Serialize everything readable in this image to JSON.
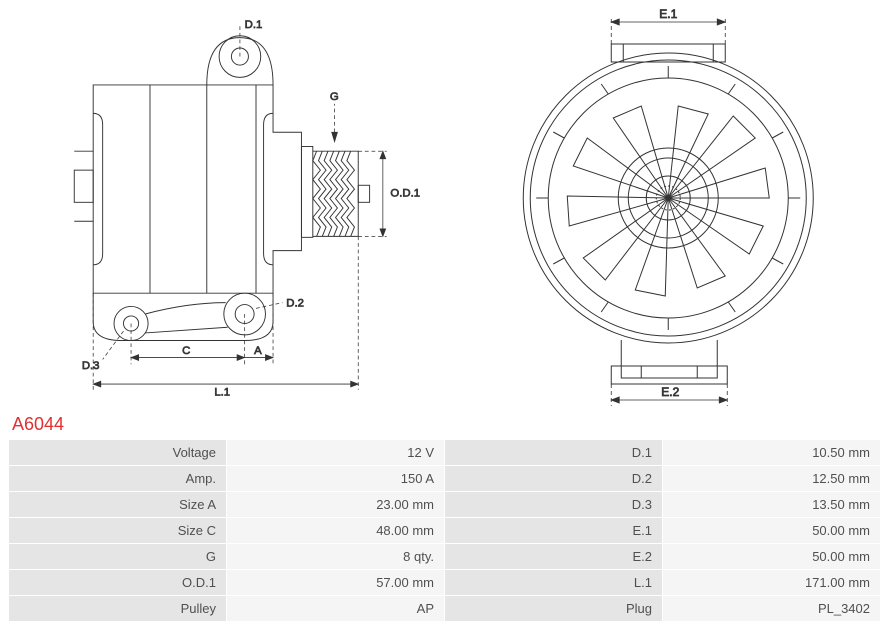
{
  "part_number": "A6044",
  "diagram": {
    "type": "engineering-drawing",
    "stroke_color": "#333333",
    "stroke_width": 1,
    "leader_color": "#333333",
    "leader_dash": "4,3",
    "label_color": "#444444",
    "label_fontsize": 12,
    "background": "#ffffff",
    "dim_labels_left": {
      "d1": "D.1",
      "g": "G",
      "od1": "O.D.1",
      "d2": "D.2",
      "d3": "D.3",
      "c": "C",
      "a": "A",
      "l1": "L.1"
    },
    "dim_labels_right": {
      "e1": "E.1",
      "e2": "E.2"
    }
  },
  "spec_table": {
    "row_bg_label": "#e5e5e5",
    "row_bg_value": "#f5f5f5",
    "border_color": "#ffffff",
    "text_color": "#505050",
    "rows": [
      {
        "l": "Voltage",
        "v": "12 V",
        "l2": "D.1",
        "v2": "10.50 mm"
      },
      {
        "l": "Amp.",
        "v": "150 A",
        "l2": "D.2",
        "v2": "12.50 mm"
      },
      {
        "l": "Size A",
        "v": "23.00 mm",
        "l2": "D.3",
        "v2": "13.50 mm"
      },
      {
        "l": "Size C",
        "v": "48.00 mm",
        "l2": "E.1",
        "v2": "50.00 mm"
      },
      {
        "l": "G",
        "v": "8 qty.",
        "l2": "E.2",
        "v2": "50.00 mm"
      },
      {
        "l": "O.D.1",
        "v": "57.00 mm",
        "l2": "L.1",
        "v2": "171.00 mm"
      },
      {
        "l": "Pulley",
        "v": "AP",
        "l2": "Plug",
        "v2": "PL_3402"
      }
    ]
  }
}
